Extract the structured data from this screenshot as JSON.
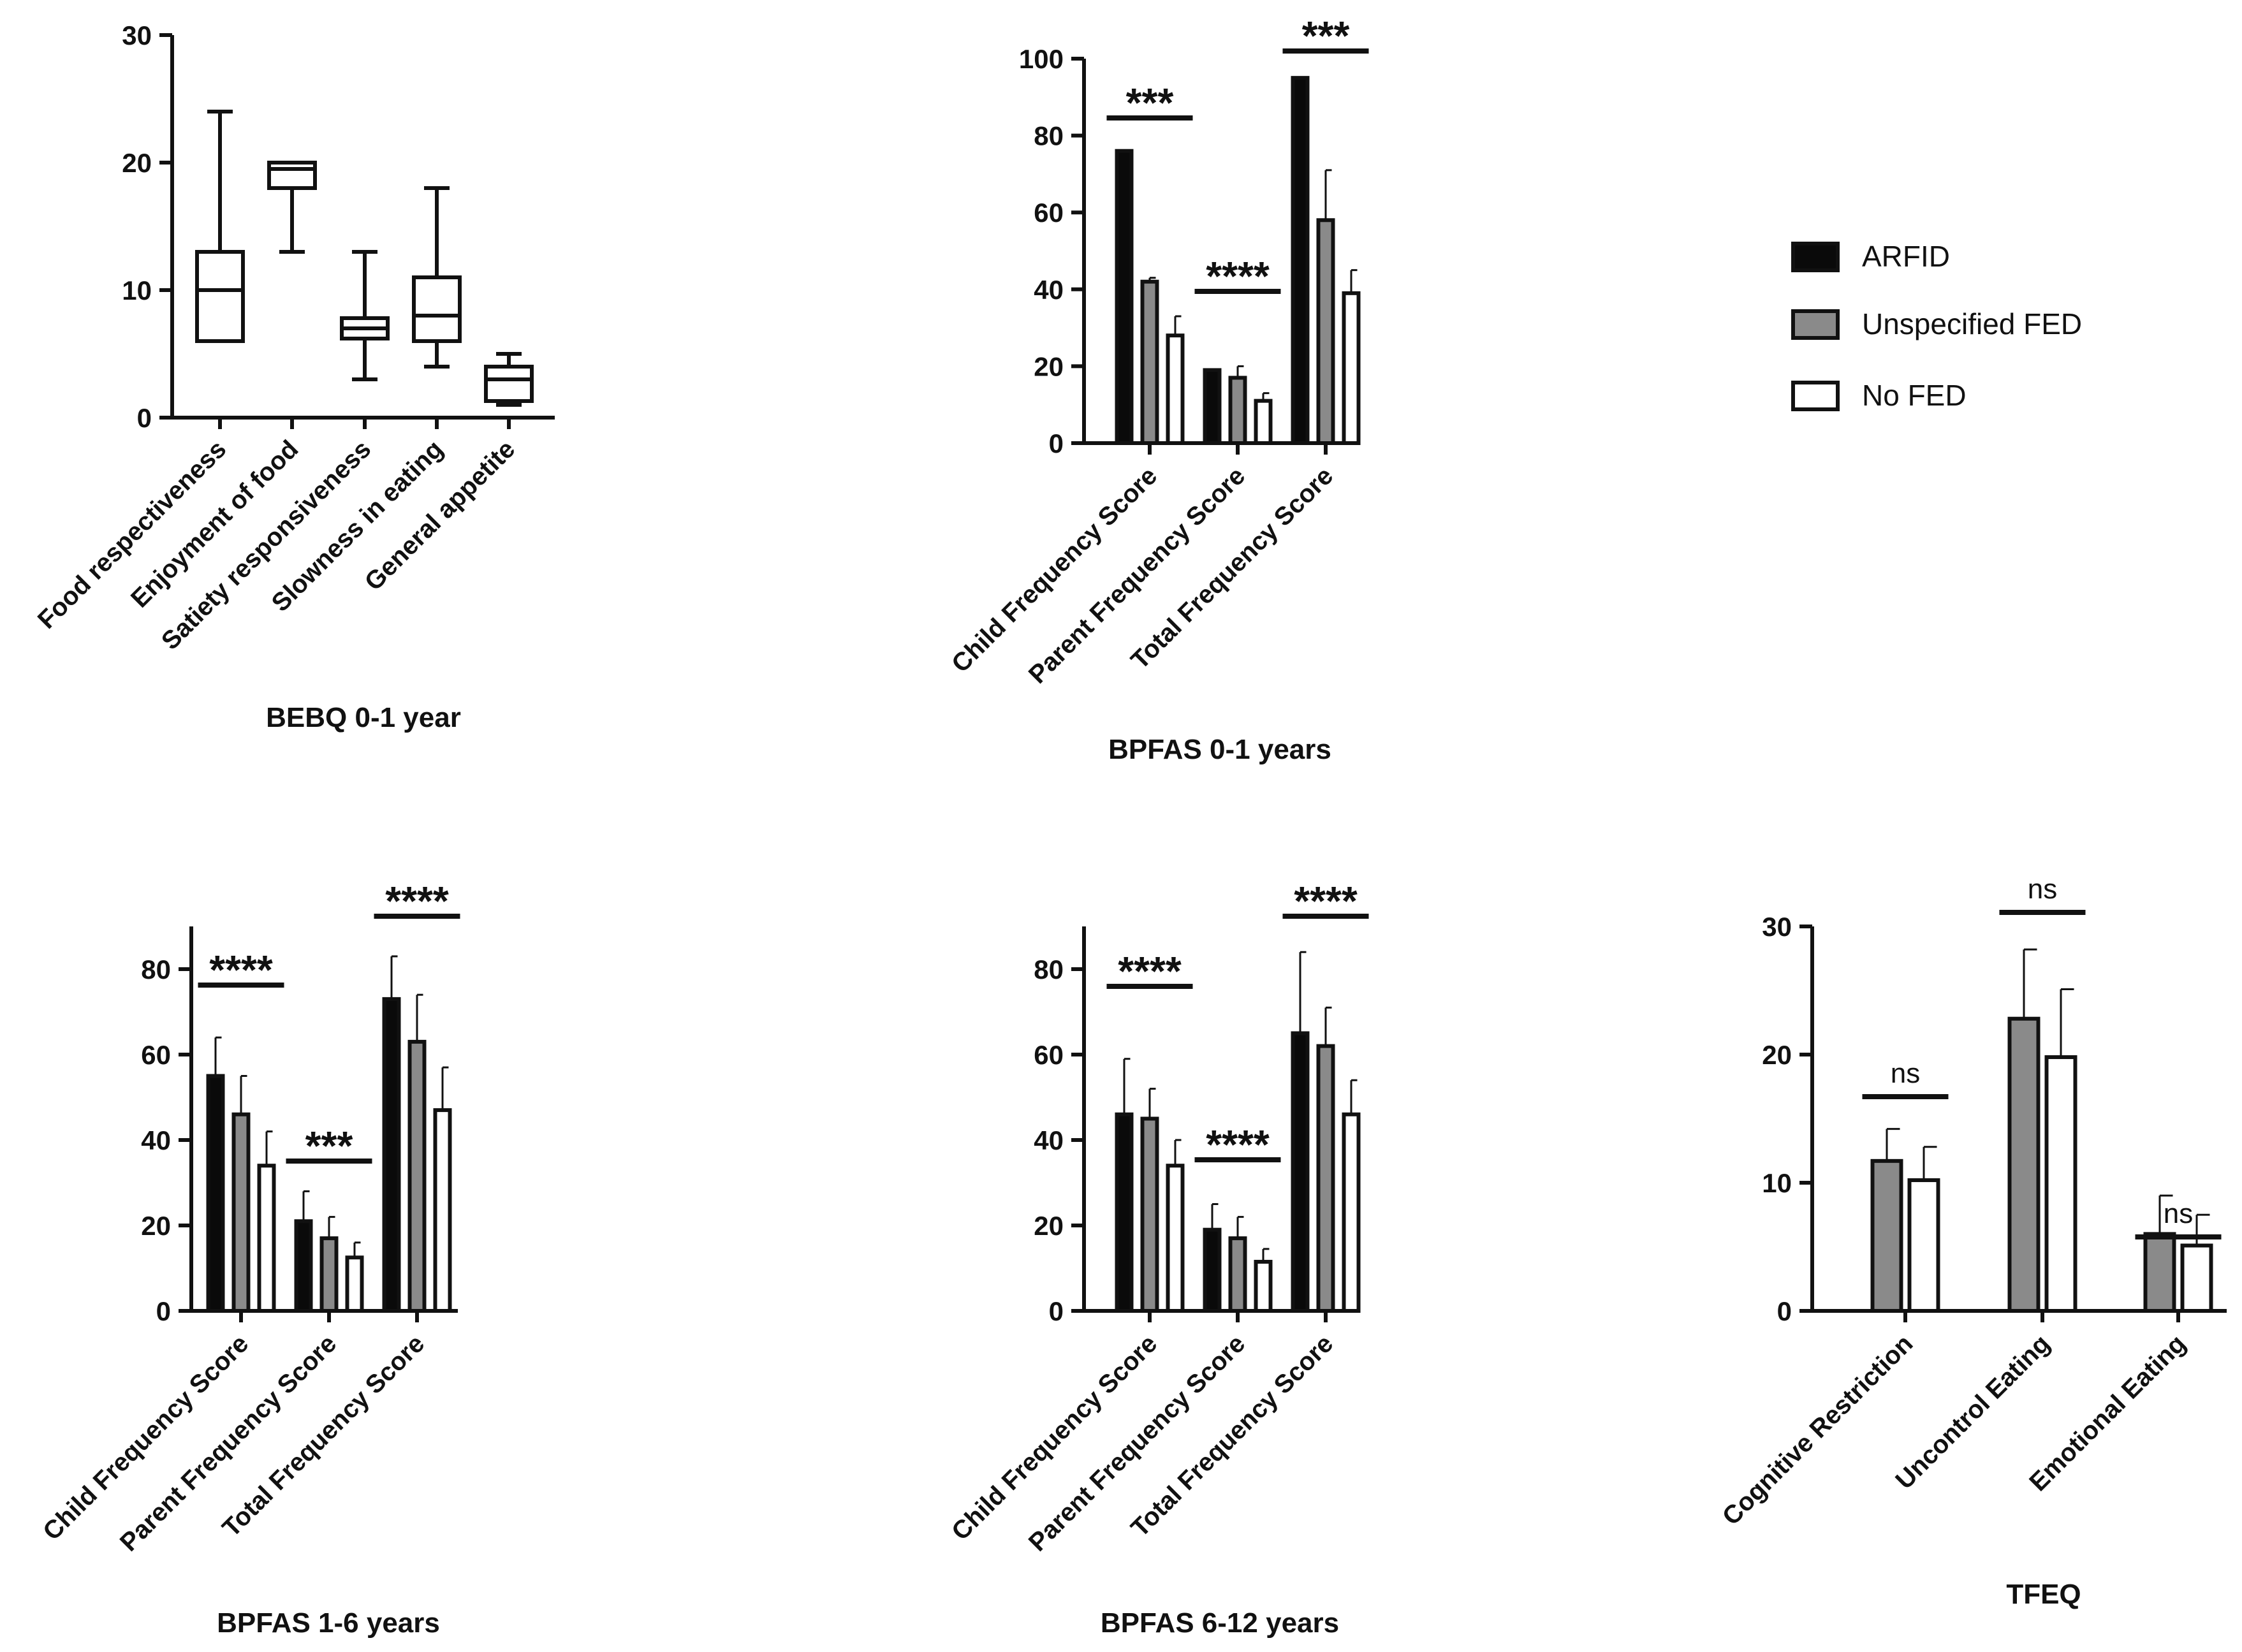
{
  "chart_data": [
    {
      "id": "bebq",
      "type": "box",
      "title": "BEBQ 0-1 year",
      "ylim": [
        0,
        30
      ],
      "yticks": [
        0,
        10,
        20,
        30
      ],
      "categories": [
        "Food respectiveness",
        "Enjoyment of food",
        "Satiety responsiveness",
        "Slowness in eating",
        "General appetite"
      ],
      "boxes": [
        {
          "min": 6,
          "q1": 6,
          "median": 10,
          "q3": 13,
          "max": 24
        },
        {
          "min": 13,
          "q1": 18,
          "median": 19.5,
          "q3": 20,
          "max": 20
        },
        {
          "min": 3,
          "q1": 6.2,
          "median": 7,
          "q3": 7.8,
          "max": 13
        },
        {
          "min": 4,
          "q1": 6,
          "median": 8,
          "q3": 11,
          "max": 18
        },
        {
          "min": 1,
          "q1": 1.3,
          "median": 3,
          "q3": 4,
          "max": 5
        }
      ]
    },
    {
      "id": "bpfas01",
      "type": "bar",
      "title": "BPFAS 0-1 years",
      "ylim": [
        0,
        100
      ],
      "yticks": [
        0,
        20,
        40,
        60,
        80,
        100
      ],
      "categories": [
        "Child Frequency Score",
        "Parent Frequency Score",
        "Total Frequency Score"
      ],
      "series": [
        {
          "name": "ARFID",
          "values": [
            76,
            19,
            95
          ],
          "errors": [
            0,
            0,
            0
          ]
        },
        {
          "name": "Unspecified FED",
          "values": [
            42,
            17,
            58
          ],
          "errors": [
            1,
            3,
            13
          ]
        },
        {
          "name": "No FED",
          "values": [
            28,
            11,
            39
          ],
          "errors": [
            5,
            2,
            6
          ]
        }
      ],
      "significance": [
        "***",
        "****",
        "***"
      ]
    },
    {
      "id": "bpfas16",
      "type": "bar",
      "title": "BPFAS 1-6 years",
      "ylim": [
        0,
        90
      ],
      "yticks": [
        0,
        20,
        40,
        60,
        80
      ],
      "categories": [
        "Child Frequency Score",
        "Parent Frequency Score",
        "Total Frequency Score"
      ],
      "series": [
        {
          "name": "ARFID",
          "values": [
            55,
            21,
            73
          ],
          "errors": [
            9,
            7,
            10
          ]
        },
        {
          "name": "Unspecified FED",
          "values": [
            46,
            17,
            63
          ],
          "errors": [
            9,
            5,
            11
          ]
        },
        {
          "name": "No FED",
          "values": [
            34,
            12.5,
            47
          ],
          "errors": [
            8,
            3.5,
            10
          ]
        }
      ],
      "significance": [
        "****",
        "***",
        "****"
      ]
    },
    {
      "id": "bpfas612",
      "type": "bar",
      "title": "BPFAS 6-12 years",
      "ylim": [
        0,
        90
      ],
      "yticks": [
        0,
        20,
        40,
        60,
        80
      ],
      "categories": [
        "Child Frequency Score",
        "Parent Frequency Score",
        "Total Frequency Score"
      ],
      "series": [
        {
          "name": "ARFID",
          "values": [
            46,
            19,
            65
          ],
          "errors": [
            13,
            6,
            19
          ]
        },
        {
          "name": "Unspecified FED",
          "values": [
            45,
            17,
            62
          ],
          "errors": [
            7,
            5,
            9
          ]
        },
        {
          "name": "No FED",
          "values": [
            34,
            11.5,
            46
          ],
          "errors": [
            6,
            3,
            8
          ]
        }
      ],
      "significance": [
        "****",
        "****",
        "****"
      ]
    },
    {
      "id": "tfeq",
      "type": "bar",
      "title": "TFEQ",
      "ylim": [
        0,
        30
      ],
      "yticks": [
        0,
        10,
        20,
        30
      ],
      "categories": [
        "Cognitive Restriction",
        "Uncontrol Eating",
        "Emotional Eating"
      ],
      "series": [
        {
          "name": "Unspecified FED",
          "values": [
            11.7,
            22.8,
            6
          ],
          "errors": [
            2.5,
            5.4,
            3
          ]
        },
        {
          "name": "No FED",
          "values": [
            10.2,
            19.8,
            5.1
          ],
          "errors": [
            2.6,
            5.3,
            2.4
          ]
        }
      ],
      "significance": [
        "ns",
        "ns",
        "ns"
      ]
    }
  ],
  "legend": {
    "items": [
      {
        "label": "ARFID",
        "fill": "#0a0a0a"
      },
      {
        "label": "Unspecified FED",
        "fill": "#8a8a8a"
      },
      {
        "label": "No FED",
        "fill": "#ffffff"
      }
    ]
  },
  "colors": {
    "ARFID": "#0a0a0a",
    "Unspecified FED": "#8a8a8a",
    "No FED": "#ffffff",
    "stroke": "#111111"
  }
}
